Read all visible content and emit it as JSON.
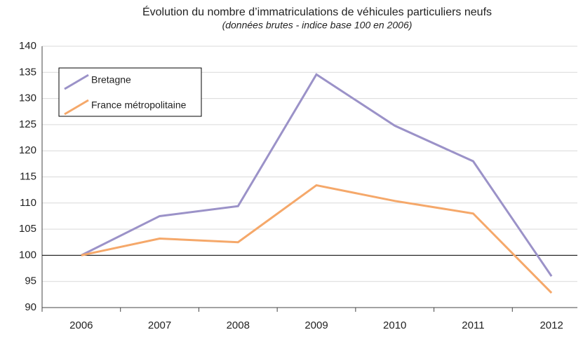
{
  "chart_data": {
    "type": "line",
    "title": "Évolution du nombre d’immatriculations de véhicules particuliers neufs",
    "subtitle": "(données brutes - indice base 100 en 2006)",
    "categories": [
      "2006",
      "2007",
      "2008",
      "2009",
      "2010",
      "2011",
      "2012"
    ],
    "series": [
      {
        "name": "Bretagne",
        "color": "#9b92c8",
        "values": [
          100,
          107.5,
          109.4,
          134.6,
          124.8,
          118,
          96
        ]
      },
      {
        "name": "France métropolitaine",
        "color": "#f5a86a",
        "values": [
          100,
          103.2,
          102.5,
          113.4,
          110.4,
          108,
          92.8
        ]
      }
    ],
    "ylim": [
      90,
      140
    ],
    "yticks": [
      90,
      95,
      100,
      105,
      110,
      115,
      120,
      125,
      130,
      135,
      140
    ],
    "grid": true,
    "hline": 100,
    "legend": "upper left"
  }
}
